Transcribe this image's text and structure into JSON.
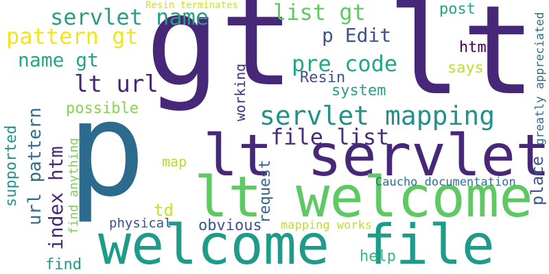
{
  "words": [
    {
      "text": "gt",
      "color": "#472777"
    },
    {
      "text": "lt",
      "color": "#472777"
    },
    {
      "text": "p",
      "color": "#2D6B8E"
    },
    {
      "text": "lt servlet",
      "color": "#472777"
    },
    {
      "text": "lt welcome",
      "color": "#5EC962"
    },
    {
      "text": "welcome file",
      "color": "#1E9C89"
    },
    {
      "text": "servlet mapping",
      "color": "#21918C"
    },
    {
      "text": "servlet name",
      "color": "#2A9D84"
    },
    {
      "text": "pattern gt",
      "color": "#F2E51D"
    },
    {
      "text": "name gt",
      "color": "#24A884"
    },
    {
      "text": "list gt",
      "color": "#5EC962"
    },
    {
      "text": "p Edit",
      "color": "#3B528B"
    },
    {
      "text": "pre code",
      "color": "#22A884"
    },
    {
      "text": "lt url",
      "color": "#472777"
    },
    {
      "text": "file list",
      "color": "#472D7B"
    },
    {
      "text": "url pattern",
      "color": "#2E6E8E"
    },
    {
      "text": "index htm",
      "color": "#472777"
    },
    {
      "text": "supported",
      "color": "#21918C"
    },
    {
      "text": "find anything",
      "color": "#7AD151"
    },
    {
      "text": "possible",
      "color": "#86D549"
    },
    {
      "text": "working",
      "color": "#46337E"
    },
    {
      "text": "request",
      "color": "#33638D"
    },
    {
      "text": "Resin",
      "color": "#3B528B"
    },
    {
      "text": "system",
      "color": "#2A9D84"
    },
    {
      "text": "htm",
      "color": "#440154"
    },
    {
      "text": "says",
      "color": "#C0DF25"
    },
    {
      "text": "post",
      "color": "#22A884"
    },
    {
      "text": "greatly appreciated",
      "color": "#2E6E8E"
    },
    {
      "text": "place",
      "color": "#3B528B"
    },
    {
      "text": "Resin terminates",
      "color": "#D2E21B"
    },
    {
      "text": "map",
      "color": "#B5DE2B"
    },
    {
      "text": "td",
      "color": "#C8E020"
    },
    {
      "text": "Caucho documentation",
      "color": "#2D708E"
    },
    {
      "text": "physical",
      "color": "#3B528B"
    },
    {
      "text": "obvious",
      "color": "#3B528B"
    },
    {
      "text": "mapping works",
      "color": "#C2DF23"
    },
    {
      "text": "find",
      "color": "#1E9C89"
    },
    {
      "text": "help",
      "color": "#35B779"
    }
  ]
}
